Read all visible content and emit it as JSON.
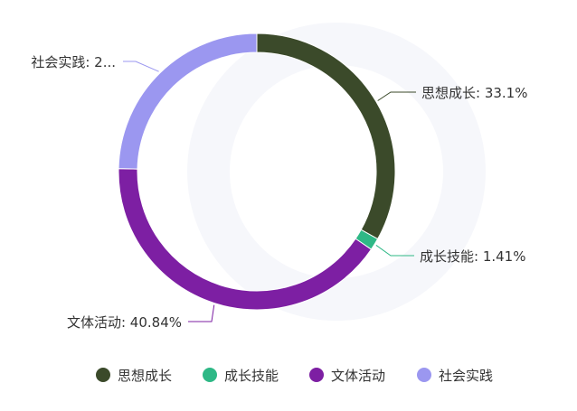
{
  "chart_data": {
    "type": "pie",
    "variant": "donut",
    "title": "",
    "legend_position": "bottom",
    "slices": [
      {
        "name": "思想成长",
        "value": 33.1,
        "label": "思想成长: 33.1%",
        "color": "#3b4a2a"
      },
      {
        "name": "成长技能",
        "value": 1.41,
        "label": "成长技能: 1.41%",
        "color": "#2eb886"
      },
      {
        "name": "文体活动",
        "value": 40.84,
        "label": "文体活动: 40.84%",
        "color": "#7d1fa3"
      },
      {
        "name": "社会实践",
        "value": 24.65,
        "label": "社会实践: 2...",
        "color": "#9b97f0"
      }
    ],
    "legend": [
      "思想成长",
      "成长技能",
      "文体活动",
      "社会实践"
    ]
  }
}
